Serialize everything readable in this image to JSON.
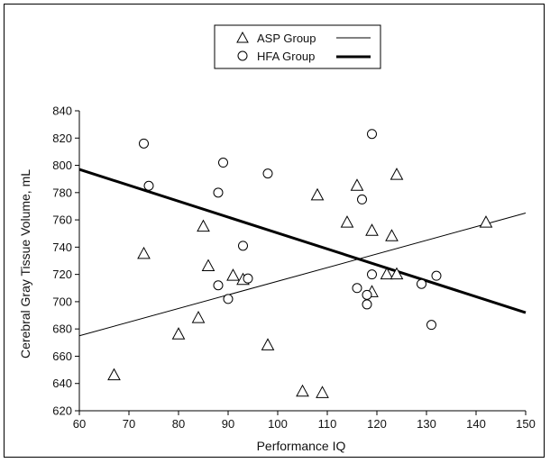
{
  "chart_data": {
    "type": "scatter",
    "xlabel": "Performance IQ",
    "ylabel": "Cerebral Gray Tissue Volume, mL",
    "xlim": [
      60,
      150
    ],
    "ylim": [
      620,
      840
    ],
    "x_ticks": [
      "60",
      "70",
      "80",
      "90",
      "100",
      "110",
      "120",
      "130",
      "140",
      "150"
    ],
    "y_ticks": [
      "620",
      "640",
      "660",
      "680",
      "700",
      "720",
      "740",
      "760",
      "780",
      "800",
      "820",
      "840"
    ],
    "grid": false,
    "legend_position": "top-center",
    "series": [
      {
        "name": "ASP Group",
        "marker": "triangle",
        "line_style": "thin",
        "points": [
          [
            67,
            646
          ],
          [
            73,
            735
          ],
          [
            80,
            676
          ],
          [
            84,
            688
          ],
          [
            85,
            755
          ],
          [
            86,
            726
          ],
          [
            91,
            719
          ],
          [
            93,
            716
          ],
          [
            98,
            668
          ],
          [
            105,
            634
          ],
          [
            108,
            778
          ],
          [
            109,
            633
          ],
          [
            114,
            758
          ],
          [
            116,
            785
          ],
          [
            119,
            752
          ],
          [
            119,
            707
          ],
          [
            122,
            720
          ],
          [
            123,
            748
          ],
          [
            124,
            720
          ],
          [
            124,
            793
          ],
          [
            142,
            758
          ]
        ],
        "trendline": [
          [
            60,
            675
          ],
          [
            150,
            765
          ]
        ]
      },
      {
        "name": "HFA Group",
        "marker": "circle",
        "line_style": "thick",
        "points": [
          [
            73,
            816
          ],
          [
            74,
            785
          ],
          [
            88,
            712
          ],
          [
            88,
            780
          ],
          [
            89,
            802
          ],
          [
            90,
            702
          ],
          [
            93,
            741
          ],
          [
            94,
            717
          ],
          [
            98,
            794
          ],
          [
            116,
            710
          ],
          [
            117,
            775
          ],
          [
            118,
            705
          ],
          [
            118,
            698
          ],
          [
            119,
            720
          ],
          [
            119,
            823
          ],
          [
            129,
            713
          ],
          [
            131,
            683
          ],
          [
            132,
            719
          ]
        ],
        "trendline": [
          [
            60,
            797
          ],
          [
            150,
            692
          ]
        ]
      }
    ]
  }
}
